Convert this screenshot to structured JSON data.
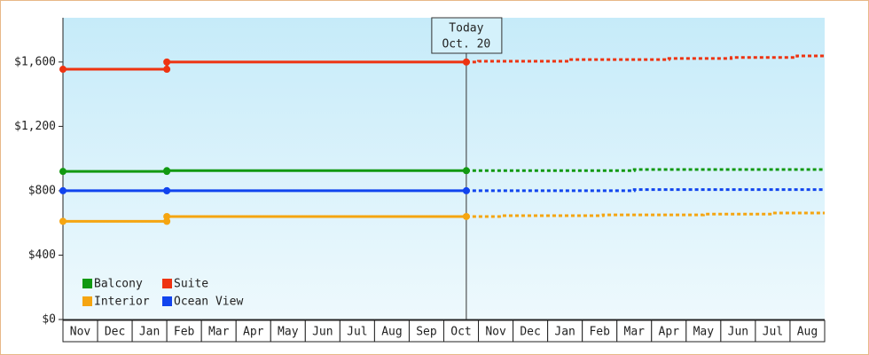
{
  "chart_data": {
    "type": "line",
    "annotation": {
      "title": "Today",
      "date": "Oct. 20",
      "x": 11.65
    },
    "categories": [
      "Nov",
      "Dec",
      "Jan",
      "Feb",
      "Mar",
      "Apr",
      "May",
      "Jun",
      "Jul",
      "Aug",
      "Sep",
      "Oct",
      "Nov",
      "Dec",
      "Jan",
      "Feb",
      "Mar",
      "Apr",
      "May",
      "Jun",
      "Jul",
      "Aug"
    ],
    "xlim": [
      0,
      22
    ],
    "ylim": [
      0,
      1875
    ],
    "yticks": [
      {
        "value": 0,
        "label": "$0"
      },
      {
        "value": 400,
        "label": "$400"
      },
      {
        "value": 800,
        "label": "$800"
      },
      {
        "value": 1200,
        "label": "$1,200"
      },
      {
        "value": 1600,
        "label": "$1,600"
      }
    ],
    "series": [
      {
        "name": "Balcony",
        "color": "#119911",
        "x": [
          0,
          3,
          3,
          11.65
        ],
        "values": [
          920,
          920,
          925,
          925
        ],
        "forecast_x": [
          11.65,
          16.5,
          16.5,
          22
        ],
        "forecast_values": [
          925,
          925,
          932,
          932
        ]
      },
      {
        "name": "Suite",
        "color": "#ee3311",
        "x": [
          0,
          3,
          3,
          11.65
        ],
        "values": [
          1555,
          1555,
          1600,
          1600
        ],
        "forecast_x": [
          11.65,
          12,
          12,
          14.6,
          14.6,
          17.5,
          17.5,
          19.3,
          19.3,
          21.2,
          21.2,
          22
        ],
        "forecast_values": [
          1600,
          1600,
          1605,
          1605,
          1615,
          1615,
          1622,
          1622,
          1628,
          1628,
          1638,
          1638
        ]
      },
      {
        "name": "Interior",
        "color": "#f5a511",
        "x": [
          0,
          3,
          3,
          11.65
        ],
        "values": [
          610,
          610,
          640,
          640
        ],
        "forecast_x": [
          11.65,
          12.7,
          12.7,
          15.6,
          15.6,
          18.5,
          18.5,
          20.5,
          20.5,
          22
        ],
        "forecast_values": [
          640,
          640,
          645,
          645,
          650,
          650,
          655,
          655,
          662,
          662
        ]
      },
      {
        "name": "Ocean View",
        "color": "#1144ee",
        "x": [
          0,
          3,
          3,
          11.65
        ],
        "values": [
          800,
          800,
          800,
          800
        ],
        "forecast_x": [
          11.65,
          16.5,
          16.5,
          22
        ],
        "forecast_values": [
          800,
          800,
          807,
          807
        ]
      }
    ]
  }
}
